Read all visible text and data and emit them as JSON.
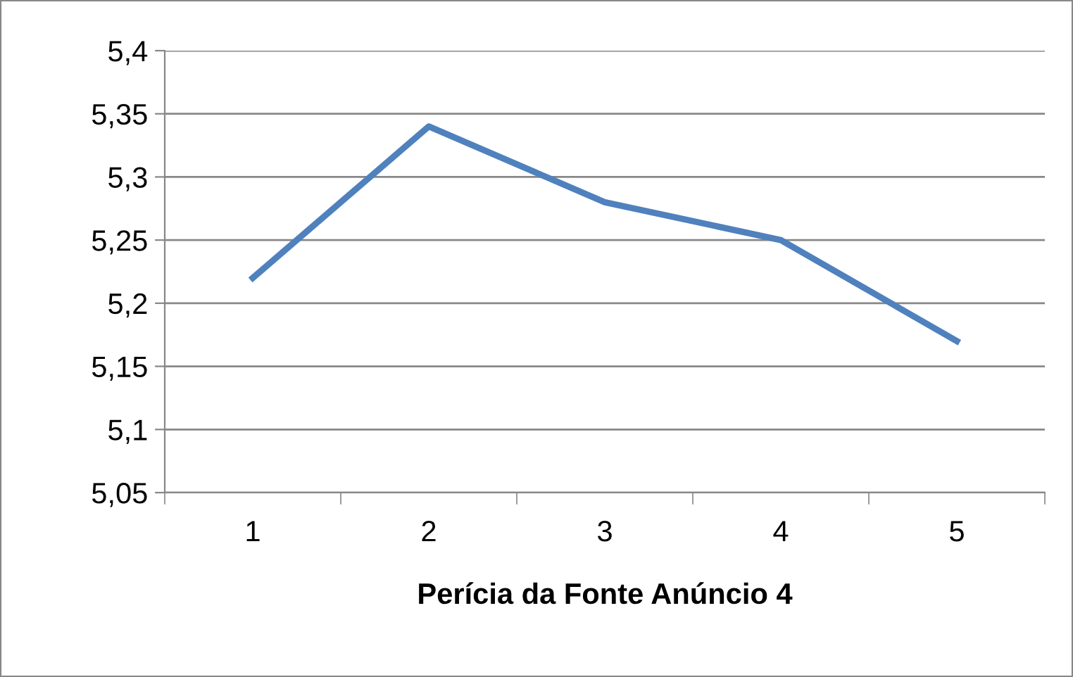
{
  "chart_data": {
    "type": "line",
    "xlabel": "Perícia da Fonte Anúncio 4",
    "categories": [
      "1",
      "2",
      "3",
      "4",
      "5"
    ],
    "series": [
      {
        "color": "#4f81bd",
        "values": [
          5.22,
          5.34,
          5.28,
          5.25,
          5.17
        ]
      }
    ],
    "ylim": [
      5.05,
      5.4
    ],
    "yticks": [
      {
        "value": 5.05,
        "label": "5,05"
      },
      {
        "value": 5.1,
        "label": "5,1"
      },
      {
        "value": 5.15,
        "label": "5,15"
      },
      {
        "value": 5.2,
        "label": "5,2"
      },
      {
        "value": 5.25,
        "label": "5,25"
      },
      {
        "value": 5.3,
        "label": "5,3"
      },
      {
        "value": 5.35,
        "label": "5,35"
      },
      {
        "value": 5.4,
        "label": "5,4"
      }
    ],
    "grid": "y",
    "legend": false,
    "marker": "none",
    "line_style": "solid"
  }
}
